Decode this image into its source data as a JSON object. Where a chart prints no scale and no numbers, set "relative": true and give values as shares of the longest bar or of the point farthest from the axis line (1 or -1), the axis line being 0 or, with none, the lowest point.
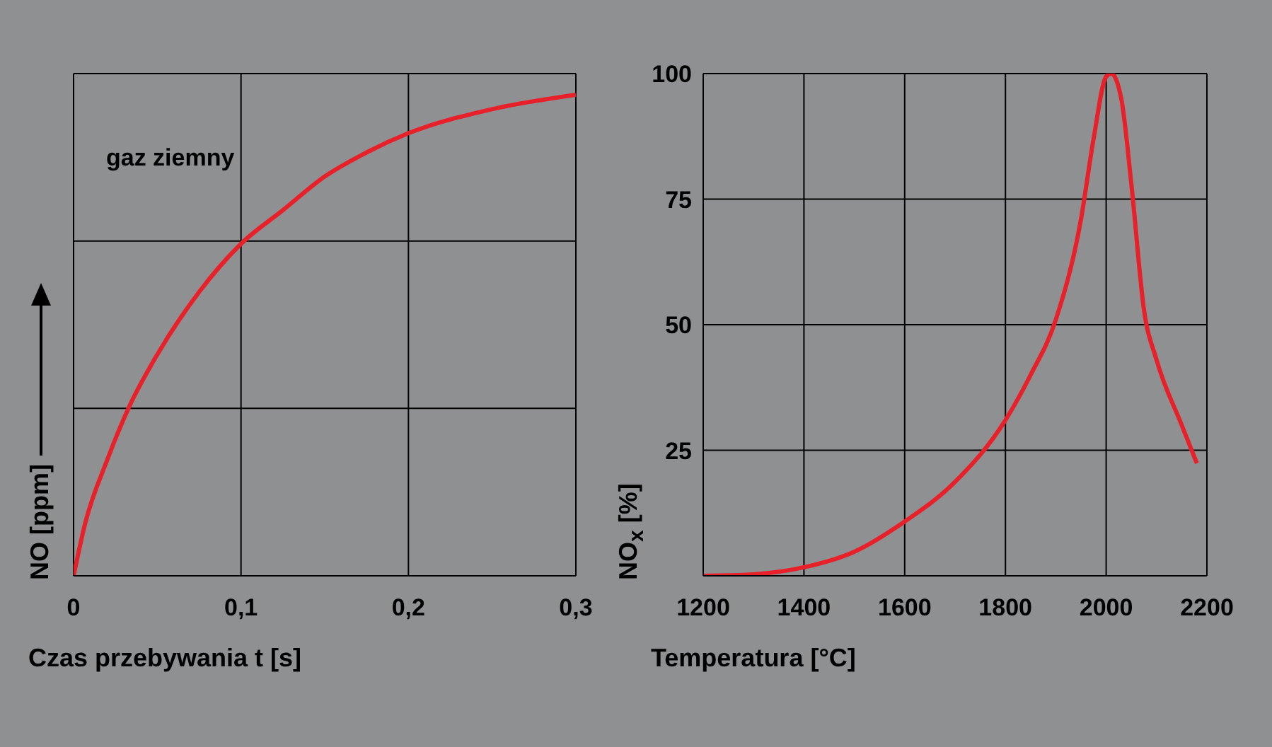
{
  "chart_data": [
    {
      "type": "line",
      "relative": true,
      "xlabel": "Czas przebywania t [s]",
      "ylabel": "NO [ppm]",
      "annotations": [
        "gaz ziemny"
      ],
      "xlim": [
        0,
        0.3
      ],
      "xticks": [
        0,
        {
          "value": 0.1,
          "label": "0,1"
        },
        {
          "value": 0.2,
          "label": "0,2"
        },
        {
          "value": 0.3,
          "label": "0,3"
        }
      ],
      "grid": true,
      "marker": "none",
      "series": [
        {
          "color": "#e8202a",
          "x": [
            0,
            0.007,
            0.02,
            0.033,
            0.05,
            0.075,
            0.1,
            0.125,
            0.15,
            0.175,
            0.2,
            0.25,
            0.3
          ],
          "values": [
            0,
            0.11,
            0.24,
            0.35,
            0.46,
            0.59,
            0.69,
            0.76,
            0.83,
            0.88,
            0.92,
            0.97,
            1
          ]
        }
      ]
    },
    {
      "type": "line",
      "xlabel": "Temperatura [°C]",
      "ylabel": "NO$_{x}$ [%]",
      "xlim": [
        1200,
        2200
      ],
      "xticks": [
        1200,
        1400,
        1600,
        1800,
        2000,
        2200
      ],
      "ylim": [
        0,
        100
      ],
      "yticks": [
        {
          "value": 0,
          "label": null
        },
        25,
        50,
        75,
        100
      ],
      "grid": true,
      "marker": "none",
      "series": [
        {
          "color": "#e8202a",
          "x": [
            1200,
            1300,
            1400,
            1500,
            1600,
            1700,
            1800,
            1850,
            1900,
            1950,
            1975,
            2000,
            2010,
            2030,
            2050,
            2075,
            2100,
            2150,
            2180
          ],
          "values": [
            0,
            0.3,
            1.7,
            4.8,
            10.8,
            18.7,
            31,
            40,
            51,
            71,
            87,
            99.4,
            100,
            95,
            78,
            53,
            43,
            30,
            22.4
          ]
        }
      ]
    }
  ]
}
